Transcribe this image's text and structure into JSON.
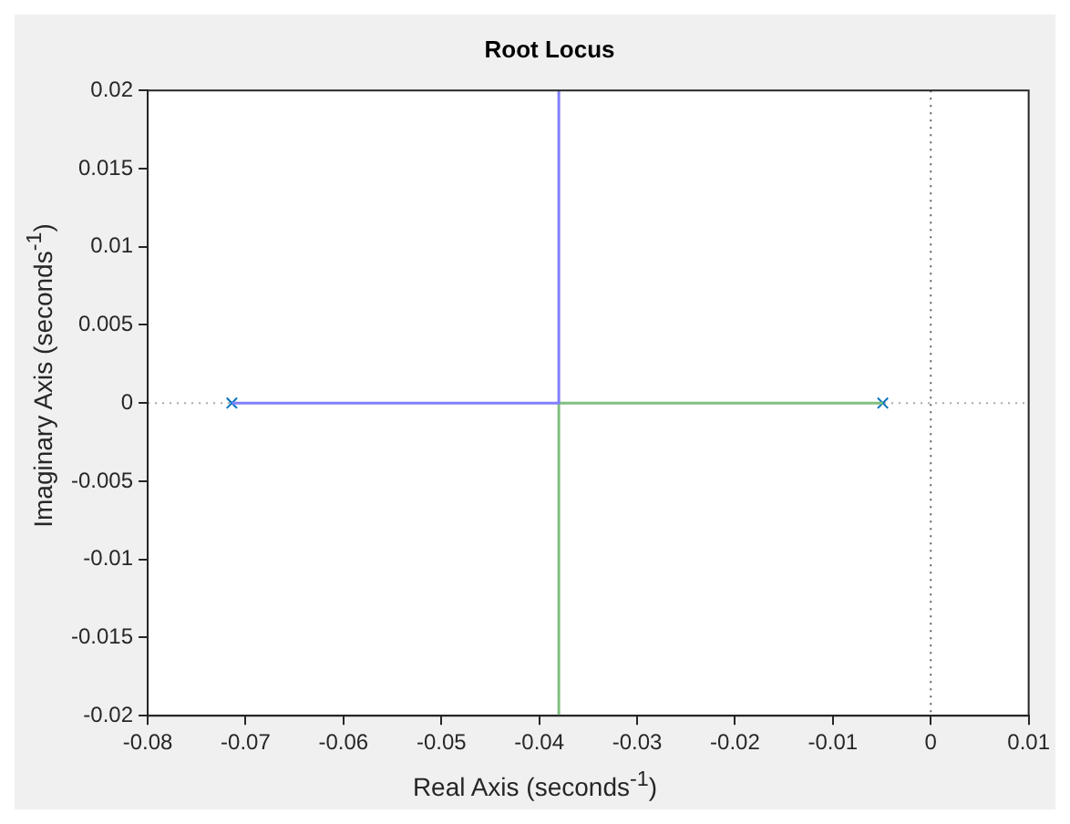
{
  "chart_data": {
    "type": "line",
    "title": "Root Locus",
    "xlabel": "Real Axis (seconds$^{-1}$)",
    "ylabel": "Imaginary Axis (seconds$^{-1}$)",
    "series": [
      {
        "type": "line",
        "color": "#8080ff",
        "x": [
          -0.0714,
          -0.038,
          -0.038
        ],
        "values": [
          0,
          0,
          0.02
        ]
      },
      {
        "type": "line",
        "color": "#80c080",
        "x": [
          -0.0049,
          -0.038,
          -0.038
        ],
        "values": [
          0,
          0,
          -0.02
        ]
      },
      {
        "type": "scatter",
        "color": "#0072bd",
        "marker": "cross",
        "x": [
          -0.0714,
          -0.0049
        ],
        "values": [
          0,
          0
        ]
      }
    ],
    "xlim": [
      -0.08,
      0.01
    ],
    "xticks": [
      -0.08,
      -0.07,
      -0.06,
      -0.05,
      -0.04,
      -0.03,
      -0.02,
      -0.01,
      0,
      0.01
    ],
    "ylim": [
      -0.02,
      0.02
    ],
    "yticks": [
      -0.02,
      -0.015,
      -0.01,
      -0.005,
      0,
      0.005,
      0.01,
      0.015,
      0.02
    ],
    "ref_lines": [
      {
        "axis": "x",
        "value": 0,
        "color": "#606060",
        "line_style": "dotted"
      },
      {
        "axis": "y",
        "value": 0,
        "color": "#a8a8a8",
        "line_style": "dotted"
      }
    ],
    "grid": false,
    "legend": false
  }
}
